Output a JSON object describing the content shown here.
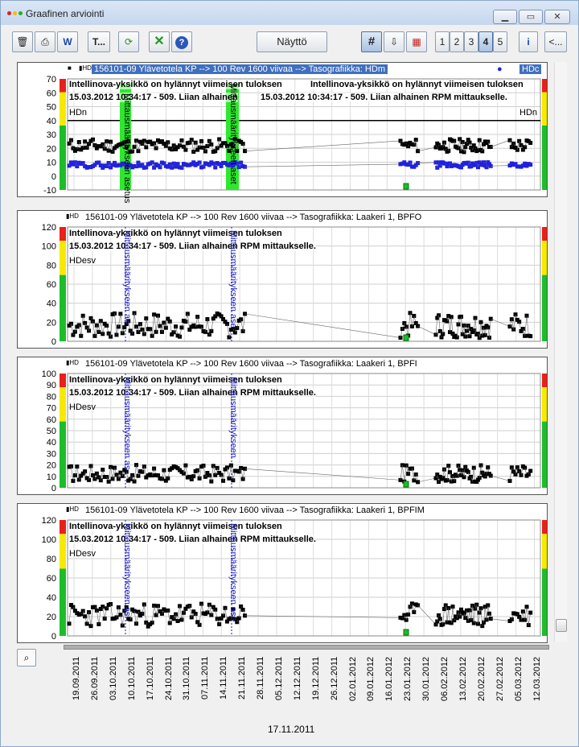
{
  "window": {
    "title": "Graafinen arviointi",
    "min_label": "▭",
    "max_label": "▢",
    "close_label": "✕"
  },
  "toolbar": {
    "text_tool_label": "T...",
    "display_button_label": "Näyttö",
    "page_buttons": [
      "1",
      "2",
      "3",
      "4",
      "5"
    ],
    "active_page": "4",
    "back_button_label": "<..."
  },
  "colors": {
    "accent": "#3f6fbf",
    "alarm_red": "#e8201a",
    "alarm_yellow": "#f5ea00",
    "alarm_green": "#1dbd2a",
    "series_blue": "#2020e0",
    "marker_green": "#2de82d"
  },
  "charts": [
    {
      "header": "156101-09 Ylävetotela KP --> 100 Rev 1600 viivaa --> Tasografiikka: HDm",
      "header_right": "HDc",
      "msg1": "Intellinova-yksikkö on hylännyt viimeisen tuloksen",
      "msg1b": "Intellinova-yksikkö on hylännyt viimeisen tuloksen",
      "msg2": "15.03.2012 10:34:17 - 509. Liian alhainen",
      "msg2b": "15.03.2012 10:34:17 - 509. Liian alhainen RPM mittaukselle.",
      "unit": "HDn",
      "unit_right": "HDn",
      "yticks": [
        "70",
        "60",
        "50",
        "40",
        "30",
        "20",
        "10",
        "0",
        "-10"
      ],
      "marker_label": "Mittausmääritykseen asetus",
      "marker_label2": "Mittausmääritykseen aset"
    },
    {
      "header": "156101-09 Ylävetotela KP --> 100 Rev 1600 viivaa --> Tasografiikka: Laakeri 1, BPFO",
      "msg1": "Intellinova-yksikkö on hylännyt viimeisen tuloksen",
      "msg2": "15.03.2012 10:34:17 - 509. Liian alhainen RPM mittaukselle.",
      "unit": "HDesv",
      "yticks": [
        "120",
        "100",
        "80",
        "60",
        "40",
        "20",
        "0"
      ],
      "marker_label": "Mittausmääritykseen as",
      "marker_label2": "Mittausmääritykseen ase"
    },
    {
      "header": "156101-09 Ylävetotela KP --> 100 Rev 1600 viivaa --> Tasografiikka: Laakeri 1, BPFI",
      "msg1": "Intellinova-yksikkö on hylännyt viimeisen tuloksen",
      "msg2": "15.03.2012 10:34:17 - 509. Liian alhainen RPM mittaukselle.",
      "unit": "HDesv",
      "yticks": [
        "100",
        "90",
        "80",
        "70",
        "60",
        "50",
        "40",
        "30",
        "20",
        "10",
        "0"
      ],
      "marker_label": "Mittausmääritykseen as",
      "marker_label2": "Mittausmääritykseen"
    },
    {
      "header": "156101-09 Ylävetotela KP --> 100 Rev 1600 viivaa --> Tasografiikka: Laakeri 1, BPFIM",
      "msg1": "Intellinova-yksikkö on hylännyt viimeisen tuloksen",
      "msg2": "15.03.2012 10:34:17 - 509. Liian alhainen RPM mittaukselle.",
      "unit": "HDesv",
      "yticks": [
        "120",
        "100",
        "80",
        "60",
        "40",
        "20",
        "0"
      ],
      "marker_label": "Mittausmääritykseen as",
      "marker_label2": "Mittausmääritykseen ase"
    }
  ],
  "dates": [
    "19.09.2011",
    "26.09.2011",
    "03.10.2011",
    "10.10.2011",
    "17.10.2011",
    "24.10.2011",
    "31.10.2011",
    "07.11.2011",
    "14.11.2011",
    "21.11.2011",
    "28.11.2011",
    "05.12.2011",
    "12.12.2011",
    "19.12.2011",
    "26.12.2011",
    "02.01.2012",
    "09.01.2012",
    "16.01.2012",
    "23.01.2012",
    "30.01.2012",
    "06.02.2012",
    "13.02.2012",
    "20.02.2012",
    "27.02.2012",
    "05.03.2012",
    "12.03.2012"
  ],
  "cursor_date": "17.11.2011"
}
